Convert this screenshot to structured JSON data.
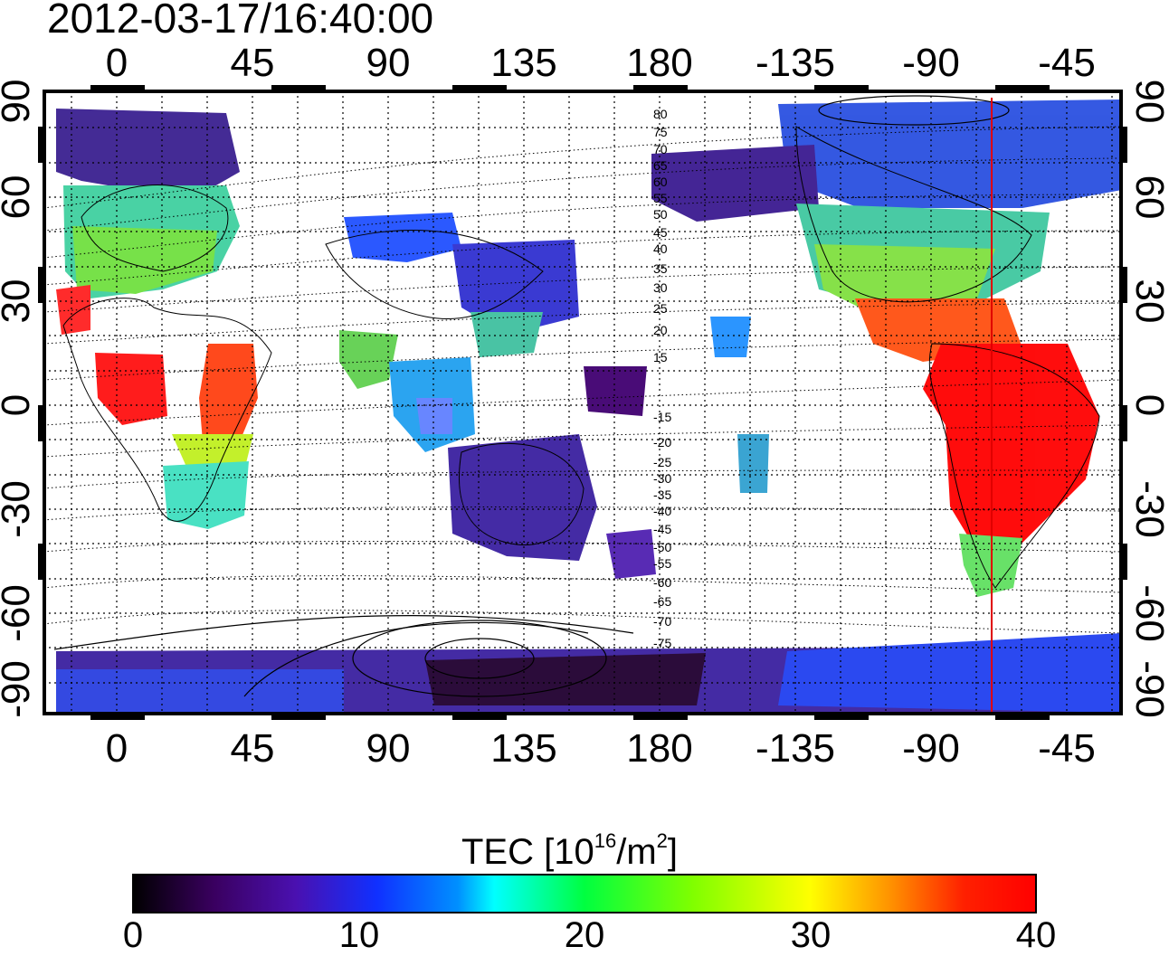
{
  "title": "2012-03-17/16:40:00",
  "map": {
    "lon_ticks": [
      "0",
      "45",
      "90",
      "135",
      "180",
      "-135",
      "-90",
      "-45"
    ],
    "lat_ticks": [
      "90",
      "60",
      "30",
      "0",
      "-30",
      "-60",
      "-90"
    ],
    "mlat_contour_labels": [
      "80",
      "75",
      "70",
      "65",
      "60",
      "55",
      "50",
      "45",
      "40",
      "35",
      "30",
      "25",
      "20",
      "15",
      "-15",
      "-20",
      "-25",
      "-30",
      "-35",
      "-40",
      "-45",
      "-50",
      "-55",
      "-60",
      "-65",
      "-70",
      "-75"
    ],
    "grid": true,
    "terminator_meridian": "-70"
  },
  "colorbar": {
    "title_main": "TEC  [10",
    "title_sup1": "16",
    "title_mid": "/m",
    "title_sup2": "2",
    "title_end": "]",
    "ticks": [
      "0",
      "10",
      "20",
      "30",
      "40"
    ],
    "range": [
      0,
      40
    ],
    "colors": [
      "#000000",
      "#3d0060",
      "#4a10b0",
      "#1030ff",
      "#00a0ff",
      "#00ffff",
      "#00ff60",
      "#60ff00",
      "#ffff00",
      "#ff9000",
      "#ff2000",
      "#ff0000"
    ]
  },
  "tec_regions": [
    {
      "name": "europe-high",
      "tec": 8
    },
    {
      "name": "europe-mid",
      "tec": 20
    },
    {
      "name": "africa-north",
      "tec": 36
    },
    {
      "name": "africa-south",
      "tec": 18
    },
    {
      "name": "asia",
      "tec": 10
    },
    {
      "name": "australia",
      "tec": 6
    },
    {
      "name": "north-america",
      "tec": 12
    },
    {
      "name": "south-america",
      "tec": 38
    },
    {
      "name": "antarctica",
      "tec": 6
    }
  ]
}
